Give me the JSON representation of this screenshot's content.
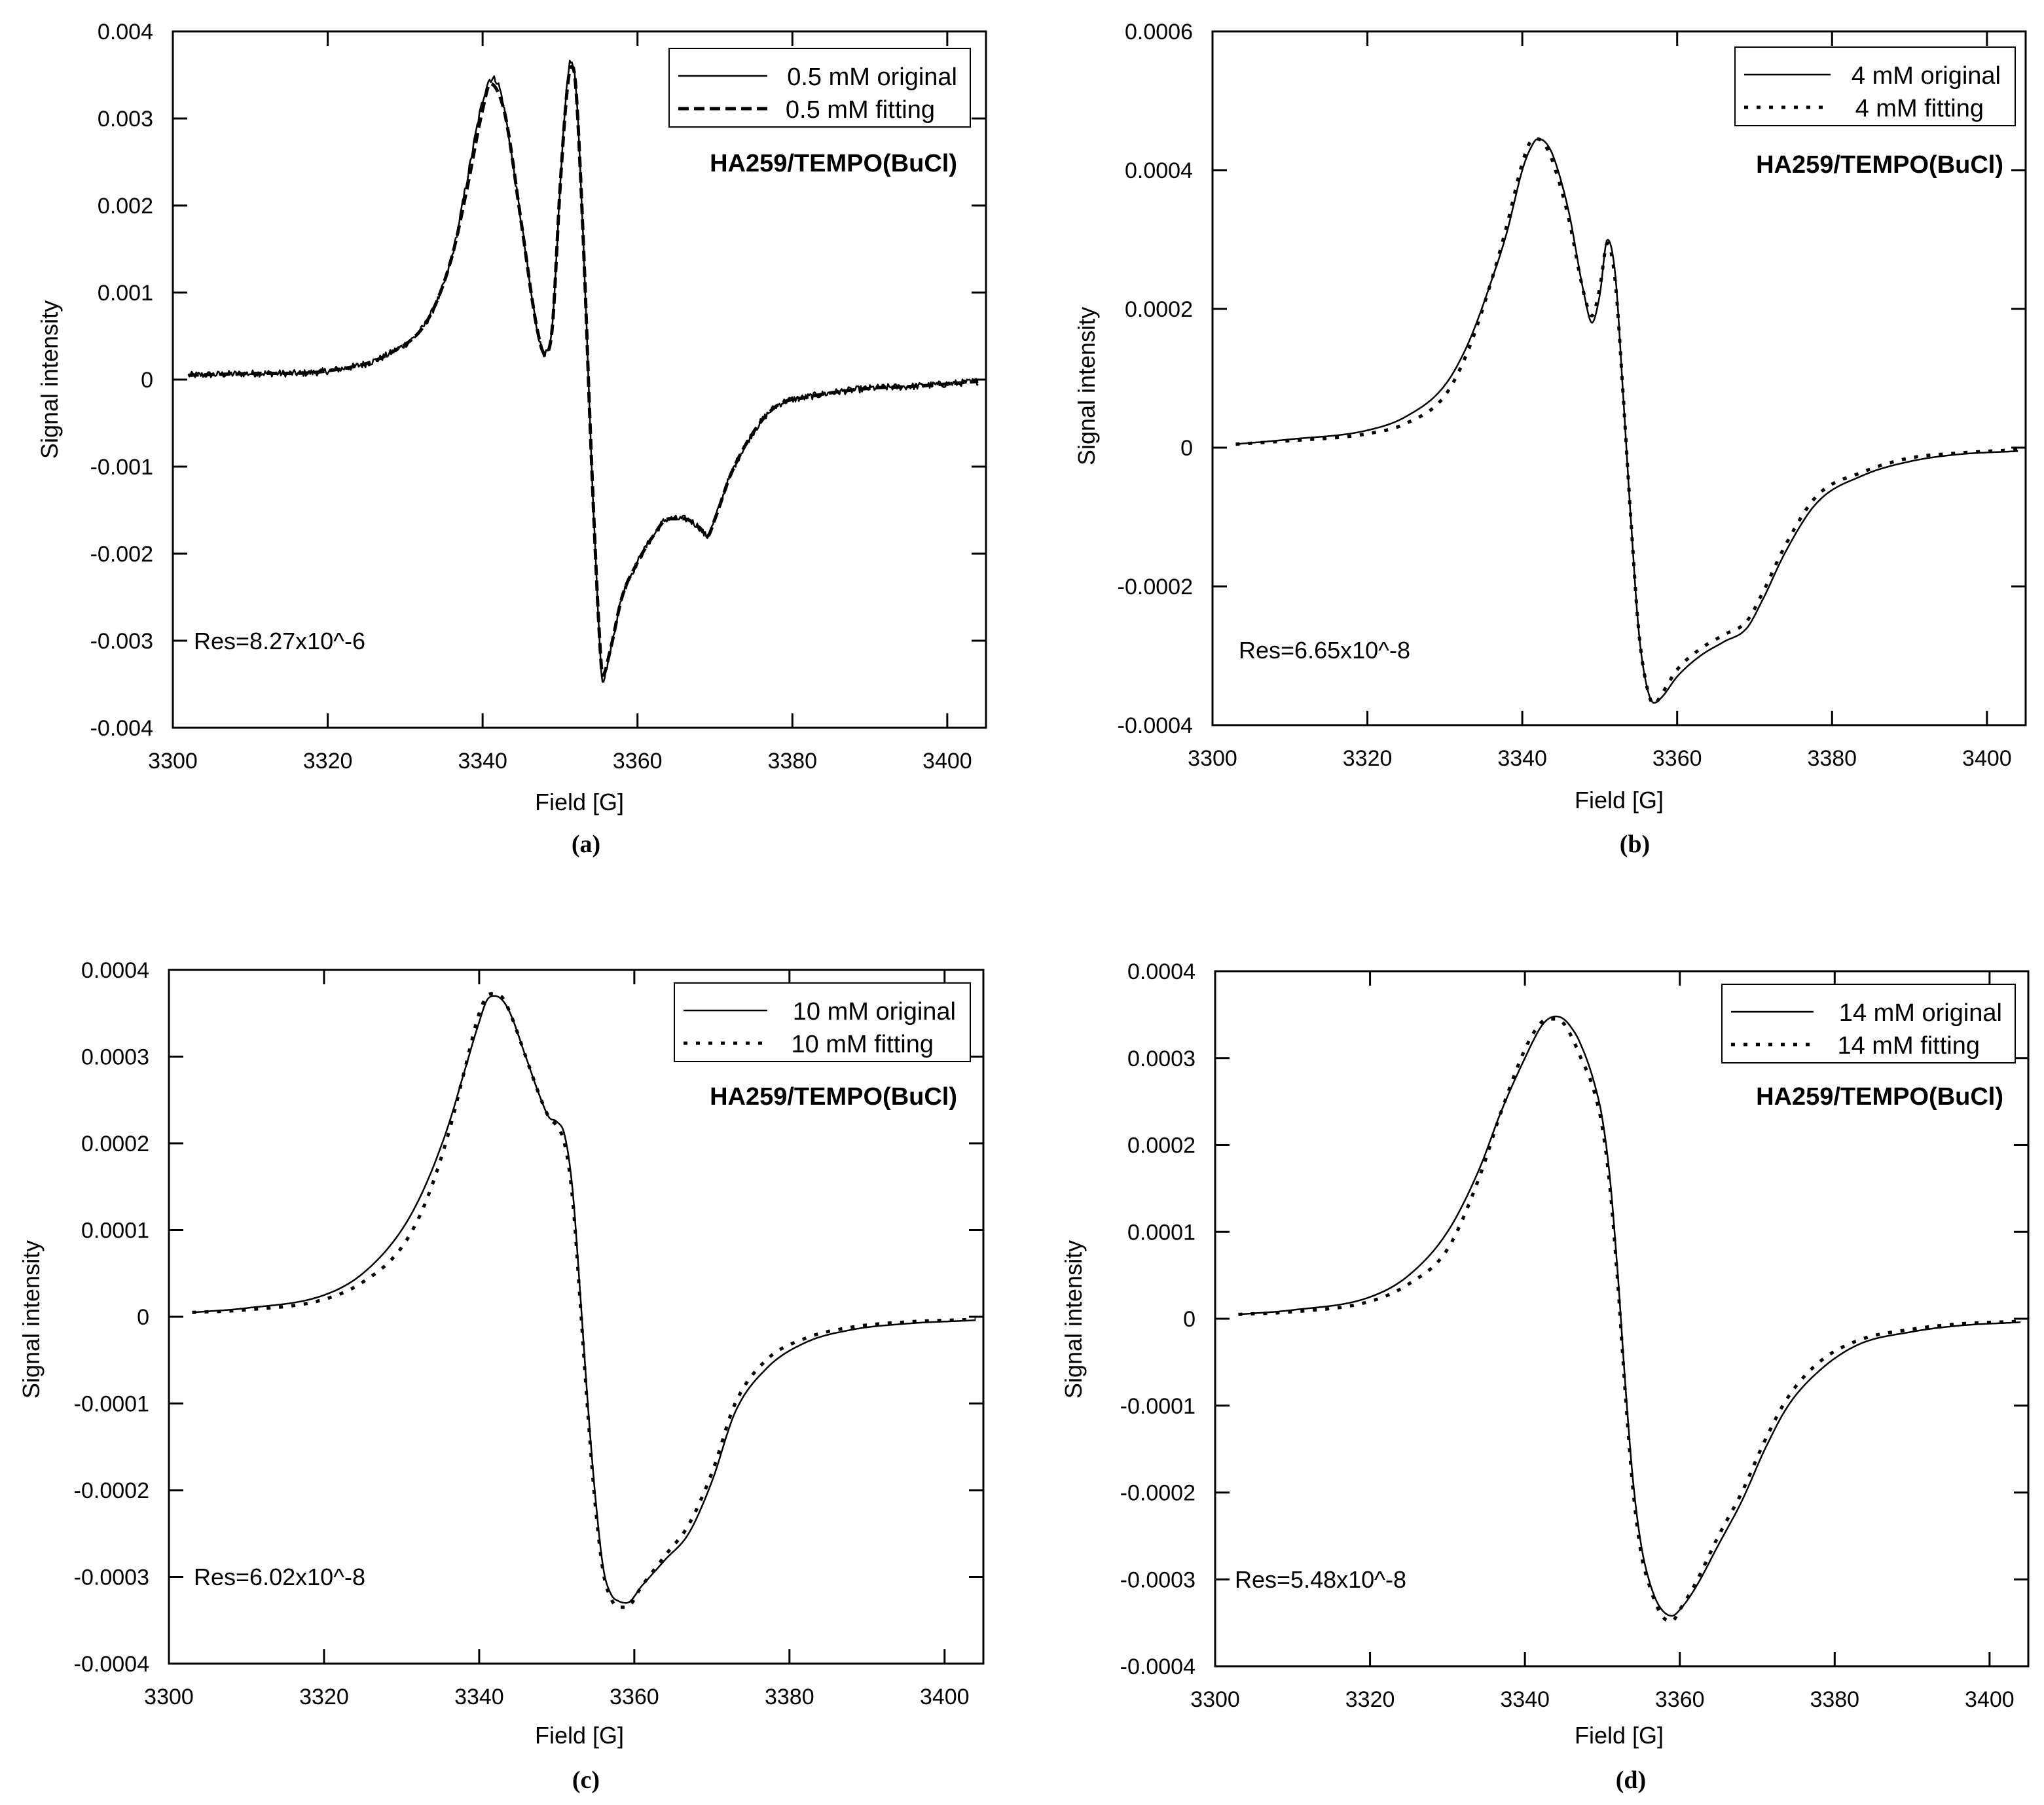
{
  "figure": {
    "panel_count": 4
  },
  "chart_data": [
    {
      "id": "a",
      "type": "line",
      "caption": "(a)",
      "annotation": "HA259/TEMPO(BuCl)",
      "residual": "Res=8.27x10^-6",
      "xlabel": "Field [G]",
      "ylabel": "Signal intensity",
      "xlim": [
        3300,
        3405
      ],
      "ylim": [
        -0.004,
        0.004
      ],
      "xticks": [
        3300,
        3320,
        3340,
        3360,
        3380,
        3400
      ],
      "xtick_labels": [
        "3300",
        "3320",
        "3340",
        "3360",
        "3380",
        "3400"
      ],
      "yticks": [
        0.004,
        0.003,
        0.002,
        0.001,
        0,
        -0.001,
        -0.002,
        -0.003,
        -0.004
      ],
      "ytick_labels": [
        "0.004",
        "0.003",
        "0.002",
        "0.001",
        "0",
        "-0.001",
        "-0.002",
        "-0.003",
        "-0.004"
      ],
      "grid": false,
      "legend_position": "top-right",
      "series": [
        {
          "name": "0.5 mM original",
          "style": "solid",
          "noise": 4e-05,
          "x": [
            3302,
            3310,
            3320,
            3328,
            3333,
            3336,
            3338,
            3340,
            3341,
            3342,
            3343,
            3345,
            3347,
            3348,
            3349,
            3350,
            3351,
            3351.5,
            3352,
            3353,
            3354,
            3355,
            3355.5,
            3356.5,
            3358,
            3360,
            3362,
            3364,
            3366,
            3368,
            3369,
            3370,
            3372,
            3375,
            3378,
            3382,
            3390,
            3395,
            3400,
            3404
          ],
          "y": [
            5e-05,
            7e-05,
            0.0001,
            0.0003,
            0.0007,
            0.0014,
            0.0023,
            0.0032,
            0.00345,
            0.0034,
            0.003,
            0.0018,
            0.0006,
            0.0003,
            0.0006,
            0.0022,
            0.0035,
            0.00365,
            0.0034,
            0.0016,
            -0.0008,
            -0.0028,
            -0.00345,
            -0.0031,
            -0.0025,
            -0.0021,
            -0.0018,
            -0.0016,
            -0.0016,
            -0.0017,
            -0.0018,
            -0.0016,
            -0.0011,
            -0.0006,
            -0.0003,
            -0.0002,
            -0.0001,
            -8e-05,
            -5e-05,
            -2e-05
          ]
        },
        {
          "name": "0.5 mM fitting",
          "style": "dashed",
          "noise": 0,
          "x": [
            3302,
            3310,
            3320,
            3328,
            3333,
            3336,
            3338,
            3340,
            3341,
            3342,
            3343,
            3345,
            3347,
            3348,
            3349,
            3350,
            3351,
            3351.5,
            3352,
            3353,
            3354,
            3355,
            3355.5,
            3356.5,
            3358,
            3360,
            3362,
            3364,
            3366,
            3368,
            3369,
            3370,
            3372,
            3375,
            3378,
            3382,
            3390,
            3395,
            3400,
            3404
          ],
          "y": [
            5e-05,
            7e-05,
            0.0001,
            0.0003,
            0.0007,
            0.0014,
            0.0022,
            0.0031,
            0.0034,
            0.0033,
            0.003,
            0.0018,
            0.0006,
            0.0003,
            0.0006,
            0.0022,
            0.0034,
            0.0036,
            0.0034,
            0.0016,
            -0.0008,
            -0.0028,
            -0.0034,
            -0.0031,
            -0.0025,
            -0.0021,
            -0.0018,
            -0.0016,
            -0.0016,
            -0.0017,
            -0.0018,
            -0.0016,
            -0.0011,
            -0.0006,
            -0.0003,
            -0.0002,
            -0.0001,
            -8e-05,
            -5e-05,
            -2e-05
          ]
        }
      ]
    },
    {
      "id": "b",
      "type": "line",
      "caption": "(b)",
      "annotation": "HA259/TEMPO(BuCl)",
      "residual": "Res=6.65x10^-8",
      "xlabel": "Field [G]",
      "ylabel": "Signal intensity",
      "xlim": [
        3300,
        3405
      ],
      "ylim": [
        -0.0004,
        0.0006
      ],
      "xticks": [
        3300,
        3320,
        3340,
        3360,
        3380,
        3400
      ],
      "xtick_labels": [
        "3300",
        "3320",
        "3340",
        "3360",
        "3380",
        "3400"
      ],
      "yticks": [
        0.0006,
        0.0004,
        0.0002,
        0,
        -0.0002,
        -0.0004
      ],
      "ytick_labels": [
        "0.0006",
        "0.0004",
        "0.0002",
        "0",
        "-0.0002",
        "-0.0004"
      ],
      "grid": false,
      "legend_position": "top-right",
      "series": [
        {
          "name": "4 mM original",
          "style": "solid",
          "noise": 0,
          "x": [
            3303,
            3310,
            3320,
            3325,
            3330,
            3333,
            3336,
            3338,
            3340,
            3341,
            3342,
            3343,
            3344,
            3346,
            3348,
            3349,
            3350,
            3351,
            3352,
            3353,
            3354,
            3355,
            3356,
            3357,
            3358,
            3360,
            3363,
            3366,
            3369,
            3371,
            3374,
            3378,
            3384,
            3390,
            3396,
            3404
          ],
          "y": [
            5e-06,
            1.2e-05,
            2.5e-05,
            4.5e-05,
            9e-05,
            0.00015,
            0.00024,
            0.00031,
            0.0004,
            0.00043,
            0.000445,
            0.00044,
            0.00042,
            0.00034,
            0.00022,
            0.00018,
            0.00022,
            0.0003,
            0.00025,
            8e-05,
            -0.0001,
            -0.00026,
            -0.00034,
            -0.000368,
            -0.00036,
            -0.00033,
            -0.0003,
            -0.00028,
            -0.00026,
            -0.00022,
            -0.00015,
            -8e-05,
            -4e-05,
            -2e-05,
            -1e-05,
            -5e-06
          ]
        },
        {
          "name": "4 mM fitting",
          "style": "dotted",
          "noise": 0,
          "x": [
            3303,
            3310,
            3320,
            3325,
            3330,
            3333,
            3336,
            3338,
            3340,
            3341,
            3342,
            3343,
            3344,
            3346,
            3348,
            3349,
            3350,
            3351,
            3352,
            3353,
            3354,
            3355,
            3356,
            3357,
            3358,
            3360,
            3363,
            3366,
            3369,
            3371,
            3374,
            3378,
            3384,
            3390,
            3396,
            3404
          ],
          "y": [
            5e-06,
            1e-05,
            2e-05,
            3.5e-05,
            7.5e-05,
            0.00014,
            0.00024,
            0.00032,
            0.00041,
            0.00044,
            0.000445,
            0.000435,
            0.00041,
            0.00033,
            0.00022,
            0.00019,
            0.00023,
            0.000295,
            0.00024,
            8e-05,
            -0.0001,
            -0.00026,
            -0.00034,
            -0.00037,
            -0.000355,
            -0.00032,
            -0.00029,
            -0.00027,
            -0.00025,
            -0.00021,
            -0.00014,
            -7e-05,
            -3.5e-05,
            -1.5e-05,
            -8e-06,
            -3e-06
          ]
        }
      ]
    },
    {
      "id": "c",
      "type": "line",
      "caption": "(c)",
      "annotation": "HA259/TEMPO(BuCl)",
      "residual": "Res=6.02x10^-8",
      "xlabel": "Field [G]",
      "ylabel": "Signal intensity",
      "xlim": [
        3300,
        3405
      ],
      "ylim": [
        -0.0004,
        0.0004
      ],
      "xticks": [
        3300,
        3320,
        3340,
        3360,
        3380,
        3400
      ],
      "xtick_labels": [
        "3300",
        "3320",
        "3340",
        "3360",
        "3380",
        "3400"
      ],
      "yticks": [
        0.0004,
        0.0003,
        0.0002,
        0.0001,
        0,
        -0.0001,
        -0.0002,
        -0.0003,
        -0.0004
      ],
      "ytick_labels": [
        "0.0004",
        "0.0003",
        "0.0002",
        "0.0001",
        "0",
        "-0.0001",
        "-0.0002",
        "-0.0003",
        "-0.0004"
      ],
      "grid": false,
      "legend_position": "top-right",
      "series": [
        {
          "name": "10 mM original",
          "style": "solid",
          "noise": 0,
          "x": [
            3303,
            3310,
            3320,
            3325,
            3330,
            3333,
            3336,
            3338,
            3340,
            3341,
            3342,
            3343,
            3344,
            3346,
            3348,
            3349,
            3350,
            3351,
            3352,
            3353,
            3354,
            3355,
            3356,
            3357,
            3358,
            3359,
            3361,
            3364,
            3367,
            3370,
            3373,
            3377,
            3382,
            3388,
            3395,
            3404
          ],
          "y": [
            5e-06,
            1e-05,
            2.5e-05,
            5e-05,
            0.0001,
            0.00015,
            0.00022,
            0.00028,
            0.00034,
            0.000365,
            0.00037,
            0.000365,
            0.00035,
            0.0003,
            0.00025,
            0.00023,
            0.000225,
            0.00021,
            0.00015,
            3e-05,
            -0.0001,
            -0.00021,
            -0.00029,
            -0.00032,
            -0.000328,
            -0.00033,
            -0.00031,
            -0.00028,
            -0.00025,
            -0.00019,
            -0.00011,
            -6e-05,
            -3e-05,
            -1.5e-05,
            -8e-06,
            -4e-06
          ]
        },
        {
          "name": "10 mM fitting",
          "style": "dotted",
          "noise": 0,
          "x": [
            3303,
            3310,
            3320,
            3325,
            3330,
            3333,
            3336,
            3338,
            3340,
            3341,
            3342,
            3343,
            3344,
            3346,
            3348,
            3349,
            3350,
            3351,
            3352,
            3353,
            3354,
            3355,
            3356,
            3357,
            3358,
            3359,
            3361,
            3364,
            3367,
            3370,
            3373,
            3377,
            3382,
            3388,
            3395,
            3404
          ],
          "y": [
            5e-06,
            8e-06,
            2e-05,
            4e-05,
            8e-05,
            0.00013,
            0.00021,
            0.00028,
            0.00035,
            0.00037,
            0.000372,
            0.000368,
            0.00035,
            0.0003,
            0.00025,
            0.00023,
            0.00022,
            0.0002,
            0.00014,
            2e-05,
            -0.00011,
            -0.00022,
            -0.000295,
            -0.000325,
            -0.000335,
            -0.000335,
            -0.00031,
            -0.000275,
            -0.00024,
            -0.00018,
            -0.0001,
            -5e-05,
            -2.5e-05,
            -1.2e-05,
            -6e-06,
            -3e-06
          ]
        }
      ]
    },
    {
      "id": "d",
      "type": "line",
      "caption": "(d)",
      "annotation": "HA259/TEMPO(BuCl)",
      "residual": "Res=5.48x10^-8",
      "xlabel": "Field [G]",
      "ylabel": "Signal intensity",
      "xlim": [
        3300,
        3405
      ],
      "ylim": [
        -0.0004,
        0.0004
      ],
      "xticks": [
        3300,
        3320,
        3340,
        3360,
        3380,
        3400
      ],
      "xtick_labels": [
        "3300",
        "3320",
        "3340",
        "3360",
        "3380",
        "3400"
      ],
      "yticks": [
        0.0004,
        0.0003,
        0.0002,
        0.0001,
        0,
        -0.0001,
        -0.0002,
        -0.0003,
        -0.0004
      ],
      "ytick_labels": [
        "0.0004",
        "0.0003",
        "0.0002",
        "0.0001",
        "0",
        "-0.0001",
        "-0.0002",
        "-0.0003",
        "-0.0004"
      ],
      "grid": false,
      "legend_position": "top-right",
      "series": [
        {
          "name": "14 mM original",
          "style": "solid",
          "noise": 0,
          "x": [
            3303,
            3310,
            3320,
            3325,
            3330,
            3334,
            3337,
            3340,
            3342,
            3343,
            3344,
            3345,
            3346,
            3347,
            3349,
            3350,
            3351,
            3352,
            3353,
            3354,
            3355,
            3356,
            3357,
            3358,
            3359,
            3360,
            3362,
            3365,
            3368,
            3371,
            3374,
            3378,
            3383,
            3390,
            3396,
            3404
          ],
          "y": [
            5e-06,
            1e-05,
            2.5e-05,
            5e-05,
            0.0001,
            0.00017,
            0.00024,
            0.0003,
            0.000335,
            0.000345,
            0.000348,
            0.000345,
            0.000335,
            0.00032,
            0.00027,
            0.00023,
            0.00016,
            5e-05,
            -8e-05,
            -0.00019,
            -0.00026,
            -0.0003,
            -0.000325,
            -0.000338,
            -0.000342,
            -0.000335,
            -0.00031,
            -0.00026,
            -0.00021,
            -0.00015,
            -0.0001,
            -6e-05,
            -3e-05,
            -1.5e-05,
            -8e-06,
            -4e-06
          ]
        },
        {
          "name": "14 mM fitting",
          "style": "dotted",
          "noise": 0,
          "x": [
            3303,
            3310,
            3320,
            3325,
            3330,
            3334,
            3337,
            3340,
            3342,
            3343,
            3344,
            3345,
            3346,
            3347,
            3349,
            3350,
            3351,
            3352,
            3353,
            3354,
            3355,
            3356,
            3357,
            3358,
            3359,
            3360,
            3362,
            3365,
            3368,
            3371,
            3374,
            3378,
            3383,
            3390,
            3396,
            3404
          ],
          "y": [
            5e-06,
            8e-06,
            2e-05,
            4e-05,
            8e-05,
            0.00016,
            0.00024,
            0.00031,
            0.00034,
            0.000345,
            0.000345,
            0.00034,
            0.000325,
            0.000305,
            0.00026,
            0.00022,
            0.00015,
            4e-05,
            -9e-05,
            -0.0002,
            -0.00027,
            -0.000305,
            -0.00033,
            -0.000345,
            -0.000348,
            -0.000335,
            -0.000305,
            -0.00025,
            -0.0002,
            -0.00014,
            -9e-05,
            -5e-05,
            -2.5e-05,
            -1.2e-05,
            -6e-06,
            -3e-06
          ]
        }
      ]
    }
  ]
}
